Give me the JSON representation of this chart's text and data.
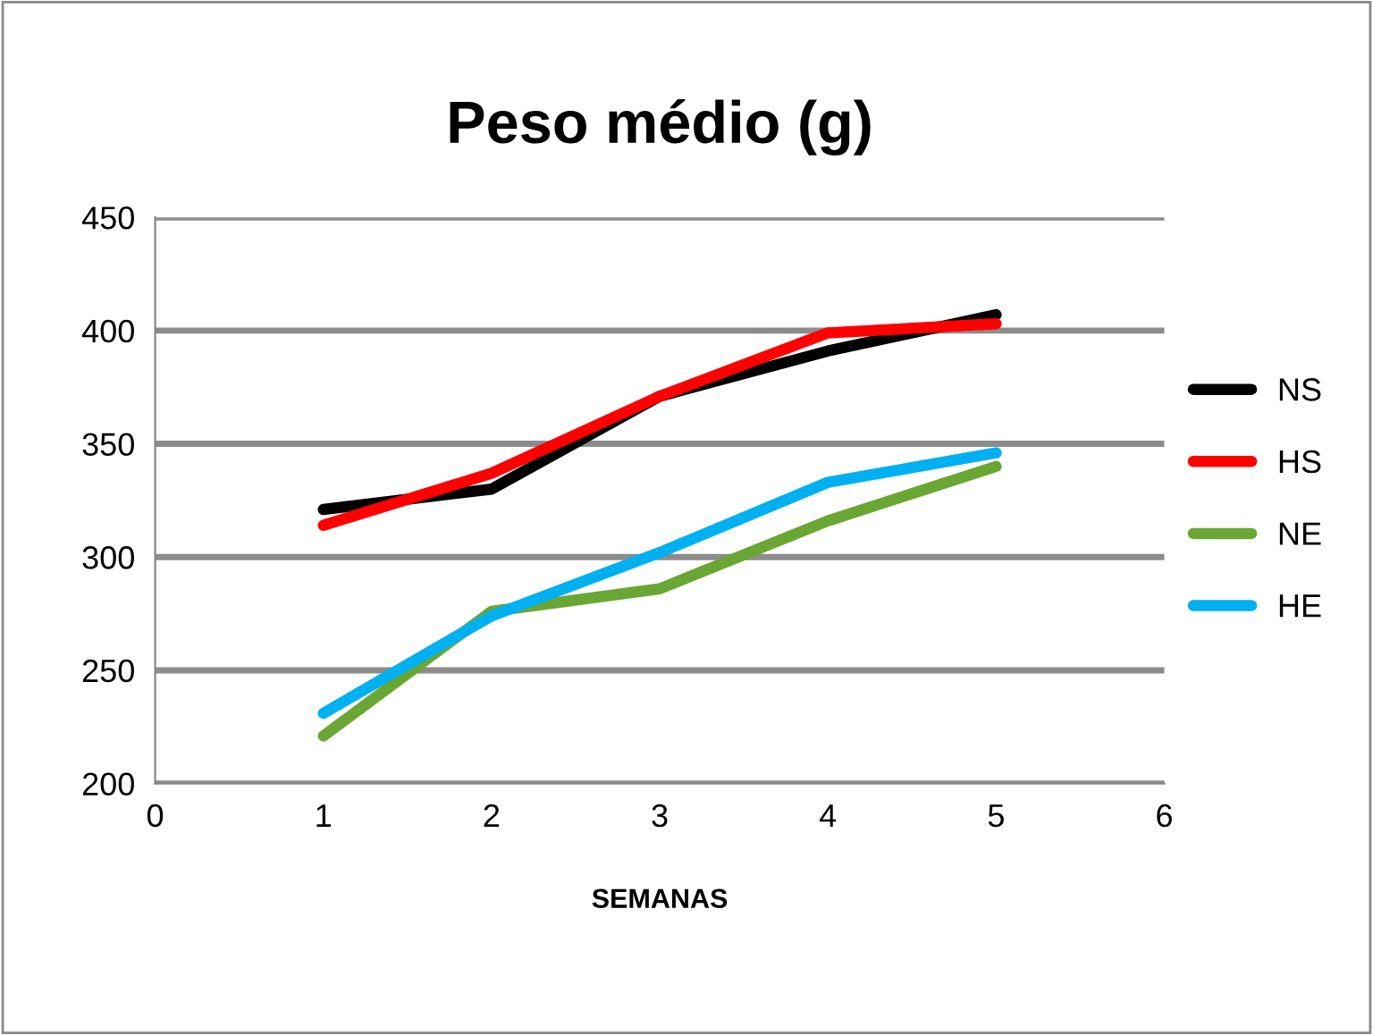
{
  "chart_data": {
    "type": "line",
    "title": "Peso médio (g)",
    "xlabel": "SEMANAS",
    "x": [
      1,
      2,
      3,
      4,
      5
    ],
    "series": [
      {
        "name": "NS",
        "color": "#000000",
        "values": [
          321,
          330,
          371,
          391,
          407
        ]
      },
      {
        "name": "HS",
        "color": "#ff0000",
        "values": [
          314,
          337,
          371,
          399,
          403
        ]
      },
      {
        "name": "NE",
        "color": "#6aa633",
        "values": [
          221,
          276,
          286,
          316,
          340
        ]
      },
      {
        "name": "HE",
        "color": "#00b0f0",
        "values": [
          231,
          274,
          302,
          333,
          346
        ]
      }
    ],
    "xlim": [
      0,
      6
    ],
    "xticks": [
      0,
      1,
      2,
      3,
      4,
      5,
      6
    ],
    "ylim": [
      200,
      450
    ],
    "yticks": [
      200,
      250,
      300,
      350,
      400,
      450
    ],
    "grid": "y",
    "legend": "right",
    "marker": "none",
    "line_style": "solid"
  }
}
